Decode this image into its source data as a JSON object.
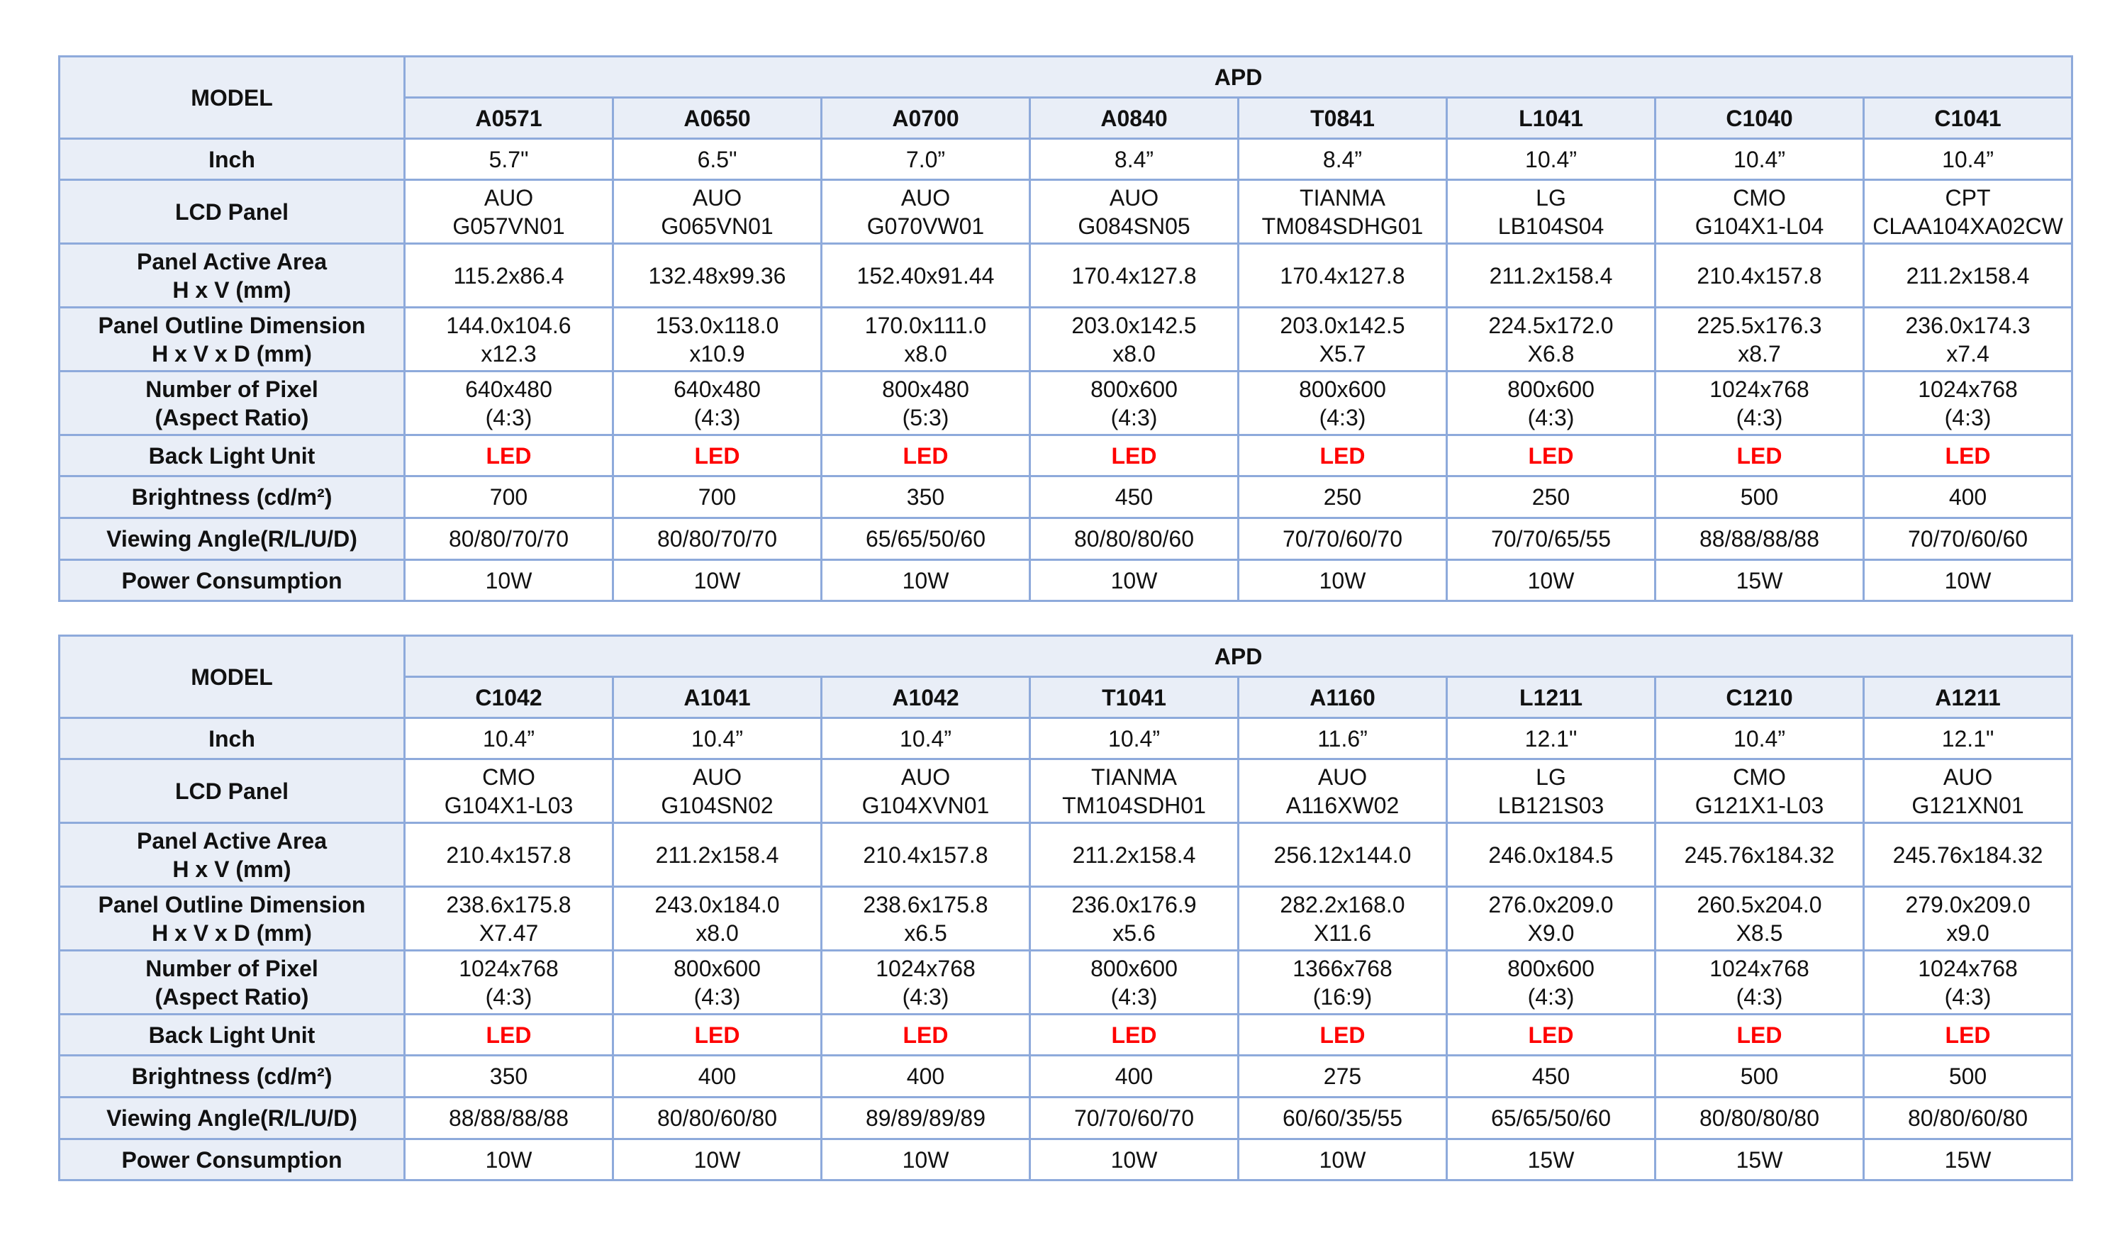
{
  "tables": [
    {
      "model_label": "MODEL",
      "group_label": "APD",
      "row_labels": {
        "inch": "Inch",
        "lcd_panel": "LCD Panel",
        "active_area_1": "Panel Active Area",
        "active_area_2": "H x V (mm)",
        "outline_1": "Panel Outline Dimension",
        "outline_2": "H x V x D (mm)",
        "pixel_1": "Number of Pixel",
        "pixel_2": "(Aspect Ratio)",
        "backlight": "Back Light Unit",
        "brightness": "Brightness (cd/m²)",
        "viewing": "Viewing Angle(R/L/U/D)",
        "power": "Power Consumption"
      },
      "models": [
        {
          "code": "A0571",
          "inch": "5.7\"",
          "panel_maker": "AUO",
          "panel_model": "G057VN01",
          "active_area": "115.2x86.4",
          "outline_1": "144.0x104.6",
          "outline_2": "x12.3",
          "pixels": "640x480",
          "aspect": "(4:3)",
          "backlight": "LED",
          "brightness": "700",
          "viewing": "80/80/70/70",
          "power": "10W"
        },
        {
          "code": "A0650",
          "inch": "6.5\"",
          "panel_maker": "AUO",
          "panel_model": "G065VN01",
          "active_area": "132.48x99.36",
          "outline_1": "153.0x118.0",
          "outline_2": "x10.9",
          "pixels": "640x480",
          "aspect": "(4:3)",
          "backlight": "LED",
          "brightness": "700",
          "viewing": "80/80/70/70",
          "power": "10W"
        },
        {
          "code": "A0700",
          "inch": "7.0”",
          "panel_maker": "AUO",
          "panel_model": "G070VW01",
          "active_area": "152.40x91.44",
          "outline_1": "170.0x111.0",
          "outline_2": "x8.0",
          "pixels": "800x480",
          "aspect": "(5:3)",
          "backlight": "LED",
          "brightness": "350",
          "viewing": "65/65/50/60",
          "power": "10W"
        },
        {
          "code": "A0840",
          "inch": "8.4”",
          "panel_maker": "AUO",
          "panel_model": "G084SN05",
          "active_area": "170.4x127.8",
          "outline_1": "203.0x142.5",
          "outline_2": "x8.0",
          "pixels": "800x600",
          "aspect": "(4:3)",
          "backlight": "LED",
          "brightness": "450",
          "viewing": "80/80/80/60",
          "power": "10W"
        },
        {
          "code": "T0841",
          "inch": "8.4”",
          "panel_maker": "TIANMA",
          "panel_model": "TM084SDHG01",
          "active_area": "170.4x127.8",
          "outline_1": "203.0x142.5",
          "outline_2": "X5.7",
          "pixels": "800x600",
          "aspect": "(4:3)",
          "backlight": "LED",
          "brightness": "250",
          "viewing": "70/70/60/70",
          "power": "10W"
        },
        {
          "code": "L1041",
          "inch": "10.4”",
          "panel_maker": "LG",
          "panel_model": "LB104S04",
          "active_area": "211.2x158.4",
          "outline_1": "224.5x172.0",
          "outline_2": "X6.8",
          "pixels": "800x600",
          "aspect": "(4:3)",
          "backlight": "LED",
          "brightness": "250",
          "viewing": "70/70/65/55",
          "power": "10W"
        },
        {
          "code": "C1040",
          "inch": "10.4”",
          "panel_maker": "CMO",
          "panel_model": "G104X1-L04",
          "active_area": "210.4x157.8",
          "outline_1": "225.5x176.3",
          "outline_2": "x8.7",
          "pixels": "1024x768",
          "aspect": "(4:3)",
          "backlight": "LED",
          "brightness": "500",
          "viewing": "88/88/88/88",
          "power": "15W"
        },
        {
          "code": "C1041",
          "inch": "10.4”",
          "panel_maker": "CPT",
          "panel_model": "CLAA104XA02CW",
          "active_area": "211.2x158.4",
          "outline_1": "236.0x174.3",
          "outline_2": "x7.4",
          "pixels": "1024x768",
          "aspect": "(4:3)",
          "backlight": "LED",
          "brightness": "400",
          "viewing": "70/70/60/60",
          "power": "10W"
        }
      ]
    },
    {
      "model_label": "MODEL",
      "group_label": "APD",
      "row_labels": {
        "inch": "Inch",
        "lcd_panel": "LCD Panel",
        "active_area_1": "Panel Active Area",
        "active_area_2": "H x V (mm)",
        "outline_1": "Panel Outline Dimension",
        "outline_2": "H x V x D (mm)",
        "pixel_1": "Number of Pixel",
        "pixel_2": "(Aspect Ratio)",
        "backlight": "Back Light Unit",
        "brightness": "Brightness (cd/m²)",
        "viewing": "Viewing Angle(R/L/U/D)",
        "power": "Power Consumption"
      },
      "models": [
        {
          "code": "C1042",
          "inch": "10.4”",
          "panel_maker": "CMO",
          "panel_model": "G104X1-L03",
          "active_area": "210.4x157.8",
          "outline_1": "238.6x175.8",
          "outline_2": "X7.47",
          "pixels": "1024x768",
          "aspect": "(4:3)",
          "backlight": "LED",
          "brightness": "350",
          "viewing": "88/88/88/88",
          "power": "10W"
        },
        {
          "code": "A1041",
          "inch": "10.4”",
          "panel_maker": "AUO",
          "panel_model": "G104SN02",
          "active_area": "211.2x158.4",
          "outline_1": "243.0x184.0",
          "outline_2": "x8.0",
          "pixels": "800x600",
          "aspect": "(4:3)",
          "backlight": "LED",
          "brightness": "400",
          "viewing": "80/80/60/80",
          "power": "10W"
        },
        {
          "code": "A1042",
          "inch": "10.4”",
          "panel_maker": "AUO",
          "panel_model": "G104XVN01",
          "active_area": "210.4x157.8",
          "outline_1": "238.6x175.8",
          "outline_2": "x6.5",
          "pixels": "1024x768",
          "aspect": "(4:3)",
          "backlight": "LED",
          "brightness": "400",
          "viewing": "89/89/89/89",
          "power": "10W"
        },
        {
          "code": "T1041",
          "inch": "10.4”",
          "panel_maker": "TIANMA",
          "panel_model": "TM104SDH01",
          "active_area": "211.2x158.4",
          "outline_1": "236.0x176.9",
          "outline_2": "x5.6",
          "pixels": "800x600",
          "aspect": "(4:3)",
          "backlight": "LED",
          "brightness": "400",
          "viewing": "70/70/60/70",
          "power": "10W"
        },
        {
          "code": "A1160",
          "inch": "11.6”",
          "panel_maker": "AUO",
          "panel_model": "A116XW02",
          "active_area": "256.12x144.0",
          "outline_1": "282.2x168.0",
          "outline_2": "X11.6",
          "pixels": "1366x768",
          "aspect": "(16:9)",
          "backlight": "LED",
          "brightness": "275",
          "viewing": "60/60/35/55",
          "power": "10W"
        },
        {
          "code": "L1211",
          "inch": "12.1\"",
          "panel_maker": "LG",
          "panel_model": "LB121S03",
          "active_area": "246.0x184.5",
          "outline_1": "276.0x209.0",
          "outline_2": "X9.0",
          "pixels": "800x600",
          "aspect": "(4:3)",
          "backlight": "LED",
          "brightness": "450",
          "viewing": "65/65/50/60",
          "power": "15W"
        },
        {
          "code": "C1210",
          "inch": "10.4”",
          "panel_maker": "CMO",
          "panel_model": "G121X1-L03",
          "active_area": "245.76x184.32",
          "outline_1": "260.5x204.0",
          "outline_2": "X8.5",
          "pixels": "1024x768",
          "aspect": "(4:3)",
          "backlight": "LED",
          "brightness": "500",
          "viewing": "80/80/80/80",
          "power": "15W"
        },
        {
          "code": "A1211",
          "inch": "12.1\"",
          "panel_maker": "AUO",
          "panel_model": "G121XN01",
          "active_area": "245.76x184.32",
          "outline_1": "279.0x209.0",
          "outline_2": "x9.0",
          "pixels": "1024x768",
          "aspect": "(4:3)",
          "backlight": "LED",
          "brightness": "500",
          "viewing": "80/80/60/80",
          "power": "15W"
        }
      ]
    }
  ],
  "colors": {
    "border": "#8eaadb",
    "header_fill": "#e9eef7",
    "led_text": "#ff0000"
  }
}
